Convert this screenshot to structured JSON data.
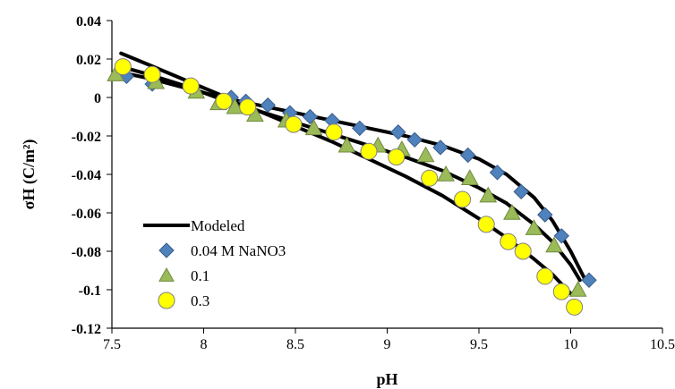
{
  "chart_data": {
    "type": "scatter",
    "xlabel": "pH",
    "ylabel": "σH (C/m²)",
    "xlim": [
      7.5,
      10.5
    ],
    "ylim": [
      -0.12,
      0.04
    ],
    "xticks": [
      7.5,
      8,
      8.5,
      9,
      9.5,
      10,
      10.5
    ],
    "xtick_labels": [
      "7.5",
      "8",
      "8.5",
      "9",
      "9.5",
      "10",
      "10.5"
    ],
    "yticks": [
      0.04,
      0.02,
      0,
      -0.02,
      -0.04,
      -0.06,
      -0.08,
      -0.1,
      -0.12
    ],
    "ytick_labels": [
      "0.04",
      "0.02",
      "0",
      "-0.02",
      "-0.04",
      "-0.06",
      "-0.08",
      "-0.1",
      "-0.12"
    ],
    "grid": false,
    "legend_position": "bottom-left",
    "series": [
      {
        "name": "Modeled",
        "kind": "line",
        "color": "#000000",
        "lines": [
          {
            "x": [
              7.55,
              7.7,
              7.9,
              8.1,
              8.3,
              8.5,
              8.7,
              8.9,
              9.1,
              9.3,
              9.5,
              9.65,
              9.8,
              9.9,
              10.0,
              10.08
            ],
            "y": [
              0.013,
              0.01,
              0.005,
              0.0,
              -0.004,
              -0.008,
              -0.012,
              -0.016,
              -0.02,
              -0.025,
              -0.032,
              -0.04,
              -0.052,
              -0.064,
              -0.08,
              -0.095
            ]
          },
          {
            "x": [
              7.55,
              7.7,
              7.9,
              8.1,
              8.3,
              8.5,
              8.7,
              8.9,
              9.1,
              9.3,
              9.5,
              9.65,
              9.8,
              9.9,
              10.0,
              10.05
            ],
            "y": [
              0.016,
              0.012,
              0.006,
              -0.001,
              -0.007,
              -0.013,
              -0.019,
              -0.025,
              -0.031,
              -0.038,
              -0.047,
              -0.055,
              -0.066,
              -0.075,
              -0.087,
              -0.095
            ]
          },
          {
            "x": [
              7.55,
              7.7,
              7.9,
              8.1,
              8.3,
              8.5,
              8.7,
              8.9,
              9.1,
              9.3,
              9.5,
              9.65,
              9.8,
              9.9,
              10.0
            ],
            "y": [
              0.023,
              0.017,
              0.009,
              0.001,
              -0.007,
              -0.015,
              -0.023,
              -0.032,
              -0.041,
              -0.051,
              -0.063,
              -0.073,
              -0.084,
              -0.092,
              -0.102
            ]
          }
        ]
      },
      {
        "name": "0.04 M NaNO3",
        "kind": "diamond",
        "color": "#4F81BD",
        "stroke": "#385D8A",
        "x": [
          7.58,
          7.72,
          7.93,
          8.15,
          8.23,
          8.35,
          8.47,
          8.58,
          8.7,
          8.85,
          9.06,
          9.15,
          9.29,
          9.44,
          9.6,
          9.73,
          9.86,
          9.95,
          10.1
        ],
        "y": [
          0.011,
          0.007,
          0.006,
          0.0,
          -0.002,
          -0.004,
          -0.008,
          -0.01,
          -0.012,
          -0.016,
          -0.018,
          -0.022,
          -0.026,
          -0.03,
          -0.039,
          -0.049,
          -0.061,
          -0.072,
          -0.095
        ]
      },
      {
        "name": "0.1",
        "kind": "triangle",
        "color": "#9BBB59",
        "stroke": "#71893F",
        "x": [
          7.52,
          7.74,
          7.96,
          8.08,
          8.17,
          8.28,
          8.45,
          8.6,
          8.78,
          8.95,
          9.08,
          9.21,
          9.32,
          9.45,
          9.55,
          9.68,
          9.8,
          9.91,
          10.04
        ],
        "y": [
          0.012,
          0.008,
          0.003,
          -0.003,
          -0.005,
          -0.009,
          -0.012,
          -0.016,
          -0.025,
          -0.025,
          -0.027,
          -0.03,
          -0.04,
          -0.042,
          -0.051,
          -0.06,
          -0.068,
          -0.077,
          -0.1
        ]
      },
      {
        "name": "0.3",
        "kind": "circle",
        "color": "#FFFF00",
        "stroke": "#7F7F7F",
        "x": [
          7.56,
          7.72,
          7.93,
          8.11,
          8.24,
          8.49,
          8.71,
          8.9,
          9.05,
          9.23,
          9.41,
          9.54,
          9.66,
          9.74,
          9.86,
          9.95,
          10.02
        ],
        "y": [
          0.016,
          0.012,
          0.006,
          -0.002,
          -0.005,
          -0.014,
          -0.018,
          -0.028,
          -0.031,
          -0.042,
          -0.053,
          -0.066,
          -0.075,
          -0.08,
          -0.093,
          -0.101,
          -0.109
        ]
      }
    ]
  }
}
